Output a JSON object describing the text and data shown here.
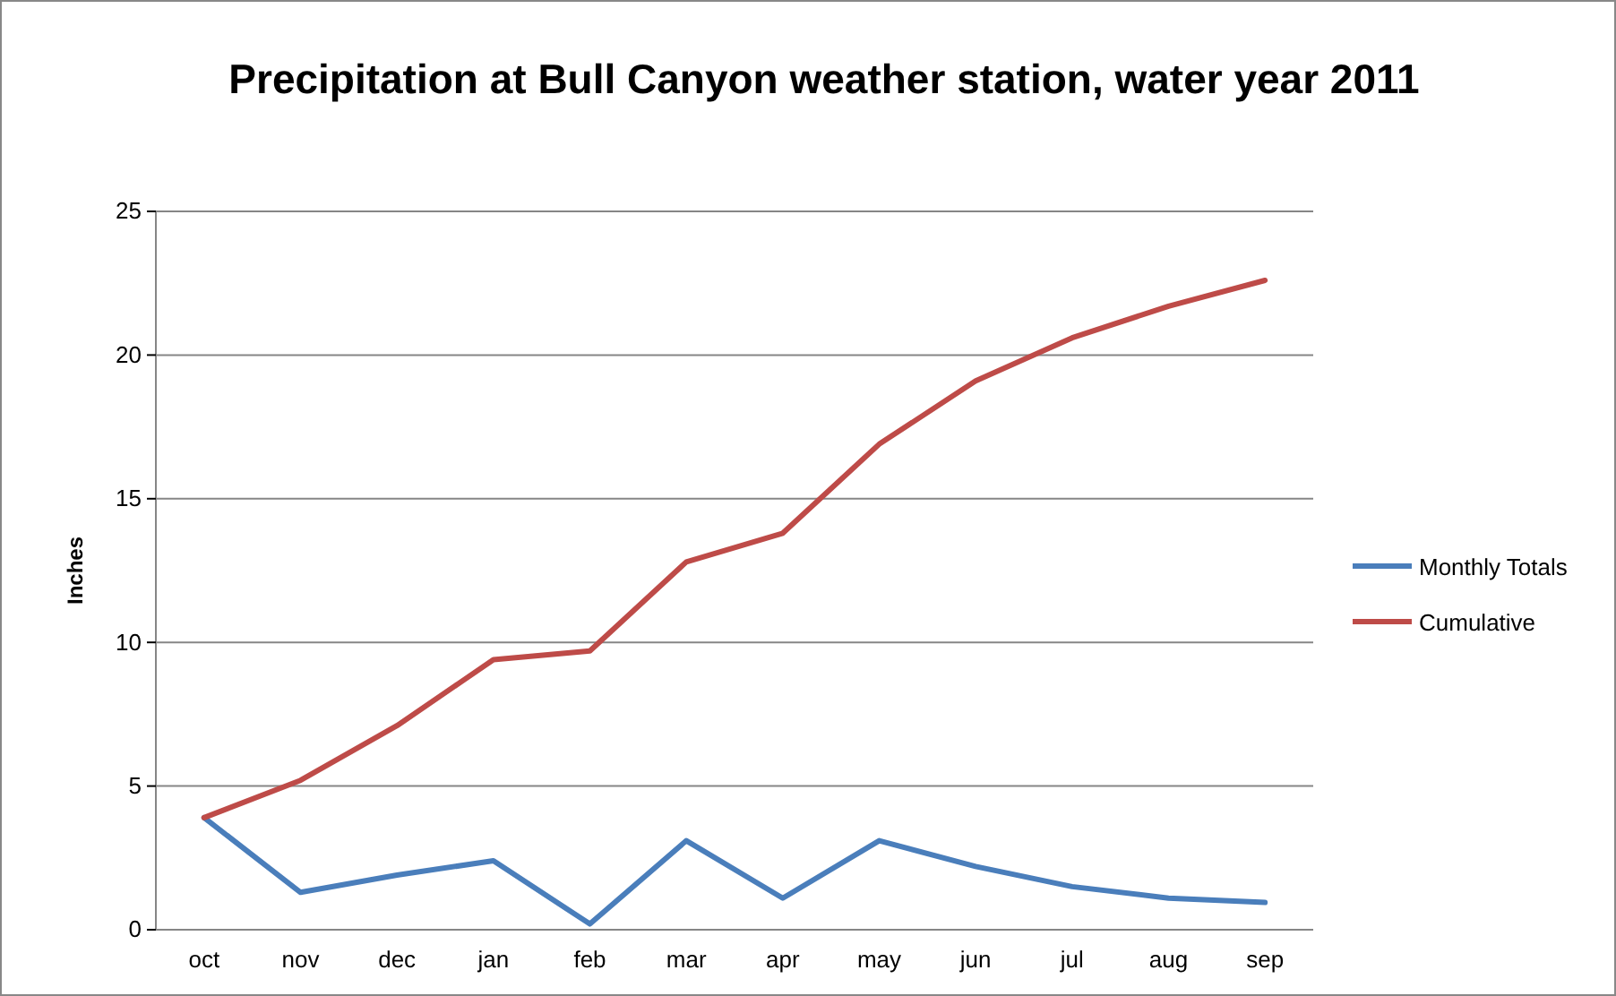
{
  "chart_data": {
    "type": "line",
    "title": "Precipitation at Bull Canyon weather station, water year 2011",
    "ylabel": "Inches",
    "categories": [
      "oct",
      "nov",
      "dec",
      "jan",
      "feb",
      "mar",
      "apr",
      "may",
      "jun",
      "jul",
      "aug",
      "sep"
    ],
    "series": [
      {
        "name": "Monthly Totals",
        "color": "#4a7ebb",
        "values": [
          3.9,
          1.3,
          1.9,
          2.4,
          0.2,
          3.1,
          1.1,
          3.1,
          2.2,
          1.5,
          1.1,
          0.95
        ]
      },
      {
        "name": "Cumulative",
        "color": "#be4b48",
        "values": [
          3.9,
          5.2,
          7.1,
          9.4,
          9.7,
          12.8,
          13.8,
          16.9,
          19.1,
          20.6,
          21.7,
          22.6
        ]
      }
    ],
    "ylim": [
      0,
      25
    ],
    "yticks": [
      0,
      5,
      10,
      15,
      20,
      25
    ],
    "grid": "y",
    "legend": "right",
    "marker": "none",
    "line_style": "solid"
  }
}
